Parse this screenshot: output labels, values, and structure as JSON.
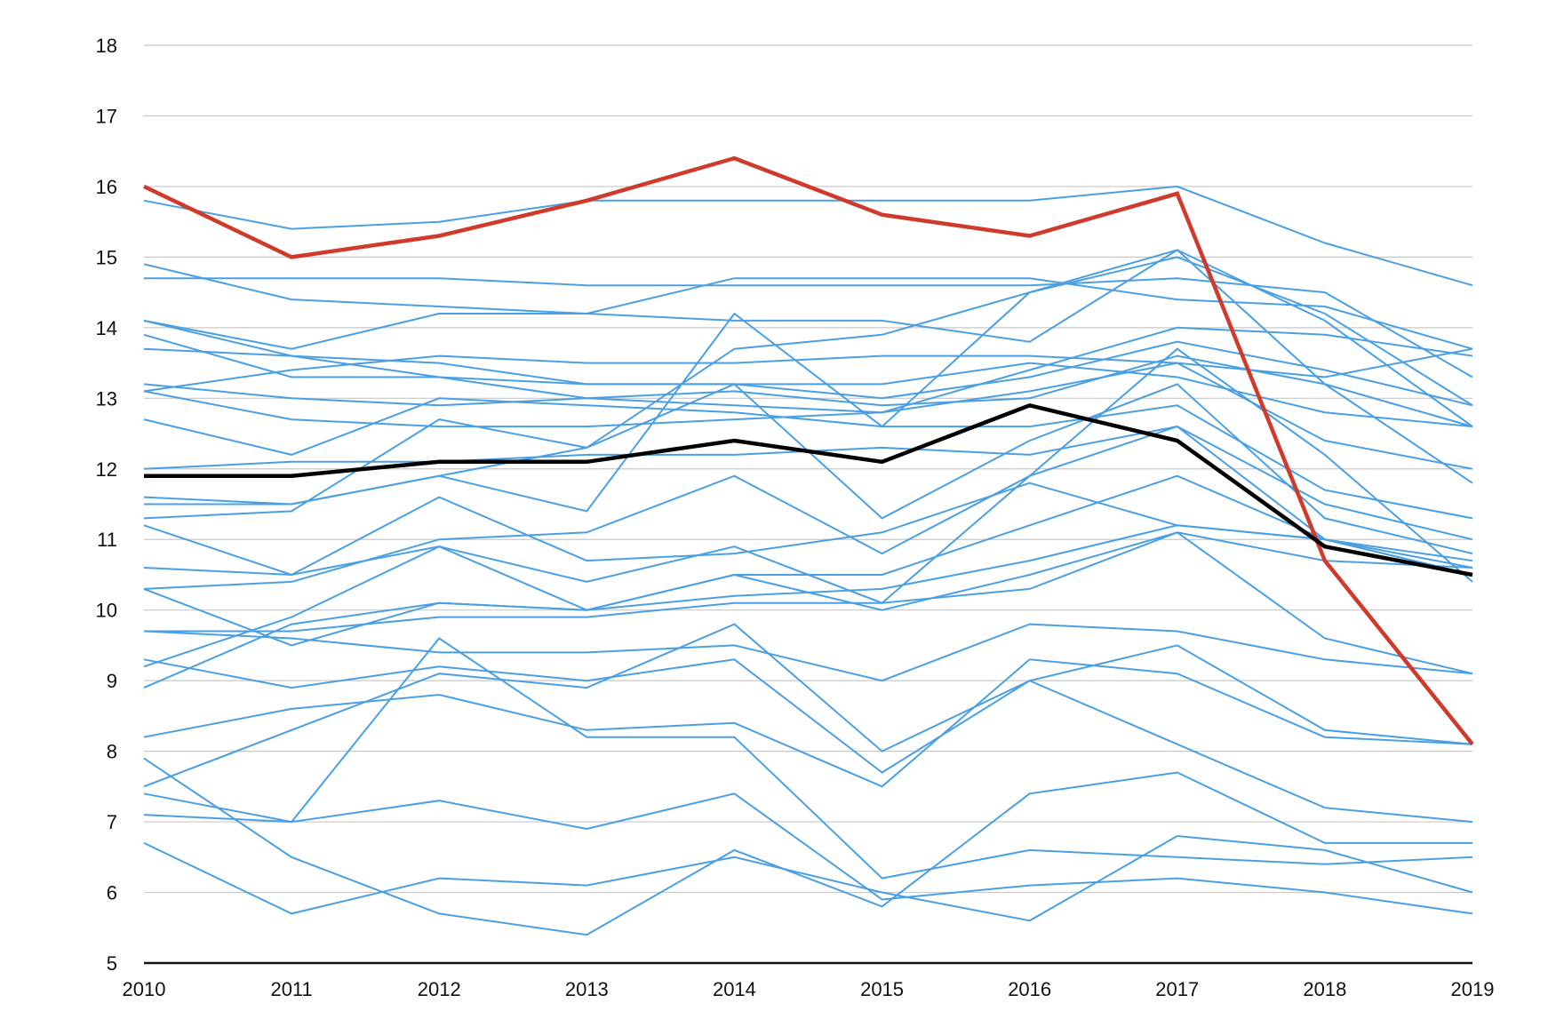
{
  "chart_data": {
    "type": "line",
    "title": "",
    "xlabel": "",
    "ylabel": "",
    "x": [
      2010,
      2011,
      2012,
      2013,
      2014,
      2015,
      2016,
      2017,
      2018,
      2019
    ],
    "ylim": [
      5,
      18
    ],
    "y_ticks": [
      5,
      6,
      7,
      8,
      9,
      10,
      11,
      12,
      13,
      14,
      15,
      16,
      17,
      18
    ],
    "grid": true,
    "legend": "none",
    "colors": {
      "group": "#4a9fe3",
      "highlight": "#d03a2a",
      "average": "#000000"
    },
    "series": [
      {
        "role": "group",
        "values": [
          15.8,
          15.4,
          15.5,
          15.8,
          15.8,
          15.8,
          15.8,
          16.0,
          15.2,
          14.6
        ]
      },
      {
        "role": "group",
        "values": [
          14.7,
          14.7,
          14.7,
          14.6,
          14.6,
          14.6,
          14.6,
          14.7,
          14.5,
          13.3
        ]
      },
      {
        "role": "group",
        "values": [
          14.9,
          14.4,
          14.3,
          14.2,
          14.1,
          14.1,
          13.8,
          15.1,
          13.2,
          11.8
        ]
      },
      {
        "role": "group",
        "values": [
          14.1,
          13.7,
          14.2,
          14.2,
          14.7,
          14.7,
          14.7,
          14.4,
          14.3,
          13.7
        ]
      },
      {
        "role": "group",
        "values": [
          14.1,
          13.6,
          13.3,
          13.0,
          12.9,
          12.8,
          13.4,
          14.0,
          13.9,
          13.6
        ]
      },
      {
        "role": "group",
        "values": [
          13.9,
          13.3,
          13.3,
          13.2,
          13.2,
          13.2,
          13.5,
          13.3,
          12.8,
          12.6
        ]
      },
      {
        "role": "group",
        "values": [
          13.7,
          13.6,
          13.5,
          13.2,
          13.2,
          13.0,
          13.3,
          13.8,
          13.4,
          12.9
        ]
      },
      {
        "role": "group",
        "values": [
          13.2,
          13.0,
          12.9,
          13.0,
          13.1,
          12.9,
          13.0,
          13.6,
          13.2,
          12.6
        ]
      },
      {
        "role": "group",
        "values": [
          13.1,
          13.4,
          13.6,
          13.5,
          13.5,
          13.6,
          13.6,
          13.5,
          13.3,
          13.7
        ]
      },
      {
        "role": "group",
        "values": [
          13.1,
          12.7,
          12.6,
          12.6,
          12.7,
          12.8,
          13.1,
          13.5,
          12.4,
          12.0
        ]
      },
      {
        "role": "group",
        "values": [
          12.7,
          12.2,
          13.0,
          12.9,
          12.8,
          12.6,
          12.6,
          12.9,
          11.7,
          11.3
        ]
      },
      {
        "role": "group",
        "values": [
          12.0,
          12.1,
          12.1,
          12.2,
          12.2,
          12.3,
          12.2,
          12.6,
          11.5,
          11.0
        ]
      },
      {
        "role": "group",
        "values": [
          11.6,
          11.5,
          11.9,
          11.4,
          14.2,
          12.6,
          14.5,
          15.0,
          14.2,
          12.9
        ]
      },
      {
        "role": "group",
        "values": [
          11.5,
          11.5,
          11.9,
          12.3,
          13.7,
          13.9,
          14.5,
          15.1,
          14.1,
          12.6
        ]
      },
      {
        "role": "group",
        "values": [
          11.3,
          11.4,
          12.7,
          12.3,
          13.2,
          11.3,
          12.4,
          13.2,
          11.3,
          10.8
        ]
      },
      {
        "role": "group",
        "values": [
          11.2,
          10.5,
          10.9,
          10.4,
          10.9,
          10.1,
          11.9,
          13.7,
          12.2,
          10.4
        ]
      },
      {
        "role": "group",
        "values": [
          10.6,
          10.5,
          11.6,
          10.7,
          10.8,
          11.1,
          11.8,
          11.2,
          11.0,
          10.7
        ]
      },
      {
        "role": "group",
        "values": [
          10.3,
          9.5,
          10.1,
          10.0,
          10.2,
          10.3,
          10.7,
          11.2,
          11.0,
          10.6
        ]
      },
      {
        "role": "group",
        "values": [
          10.3,
          10.4,
          11.0,
          11.1,
          11.9,
          10.8,
          11.9,
          12.6,
          11.0,
          10.5
        ]
      },
      {
        "role": "group",
        "values": [
          9.7,
          9.7,
          9.9,
          9.9,
          10.1,
          10.1,
          10.3,
          11.1,
          10.7,
          10.6
        ]
      },
      {
        "role": "group",
        "values": [
          9.7,
          9.6,
          9.4,
          9.4,
          9.5,
          9.0,
          9.8,
          9.7,
          9.3,
          9.1
        ]
      },
      {
        "role": "group",
        "values": [
          9.3,
          8.9,
          9.2,
          9.0,
          9.3,
          7.7,
          9.0,
          9.5,
          8.3,
          8.1
        ]
      },
      {
        "role": "group",
        "values": [
          9.2,
          9.9,
          10.9,
          10.0,
          10.5,
          10.5,
          11.2,
          11.9,
          11.0,
          10.5
        ]
      },
      {
        "role": "group",
        "values": [
          8.9,
          9.8,
          10.1,
          10.0,
          10.5,
          10.0,
          10.5,
          11.1,
          9.6,
          9.1
        ]
      },
      {
        "role": "group",
        "values": [
          8.2,
          8.6,
          8.8,
          8.3,
          8.4,
          7.5,
          9.3,
          9.1,
          8.2,
          8.1
        ]
      },
      {
        "role": "group",
        "values": [
          7.9,
          6.5,
          5.7,
          5.4,
          6.6,
          5.8,
          7.4,
          7.7,
          6.7,
          6.7
        ]
      },
      {
        "role": "group",
        "values": [
          7.5,
          8.3,
          9.1,
          8.9,
          9.8,
          8.0,
          9.0,
          8.1,
          7.2,
          7.0
        ]
      },
      {
        "role": "group",
        "values": [
          7.4,
          7.0,
          9.6,
          8.2,
          8.2,
          6.2,
          6.6,
          6.5,
          6.4,
          6.5
        ]
      },
      {
        "role": "group",
        "values": [
          7.1,
          7.0,
          7.3,
          6.9,
          7.4,
          5.9,
          6.1,
          6.2,
          6.0,
          5.7
        ]
      },
      {
        "role": "group",
        "values": [
          6.7,
          5.7,
          6.2,
          6.1,
          6.5,
          6.0,
          5.6,
          6.8,
          6.6,
          6.0
        ]
      },
      {
        "role": "highlight",
        "values": [
          16.0,
          15.0,
          15.3,
          15.8,
          16.4,
          15.6,
          15.3,
          15.9,
          10.7,
          8.1
        ]
      },
      {
        "role": "average",
        "values": [
          11.9,
          11.9,
          12.1,
          12.1,
          12.4,
          12.1,
          12.9,
          12.4,
          10.9,
          10.5
        ]
      }
    ]
  }
}
